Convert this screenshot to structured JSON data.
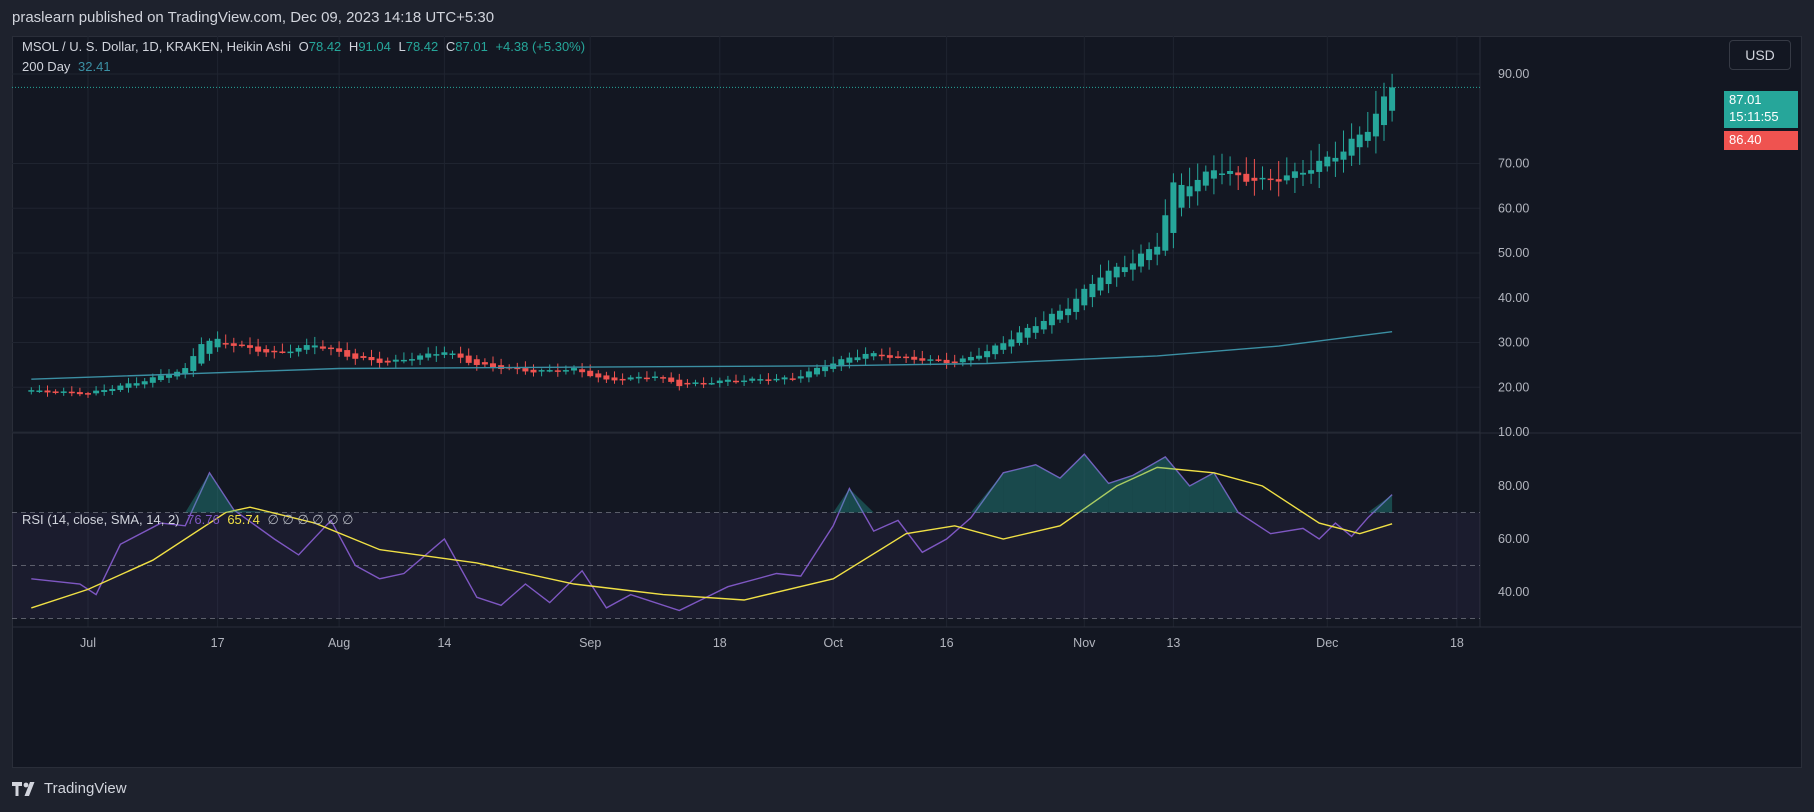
{
  "header": {
    "published_text": "praslearn published on TradingView.com, Dec 09, 2023 14:18 UTC+5:30"
  },
  "legend": {
    "symbol": "MSOL / U. S. Dollar, 1D, KRAKEN, Heikin Ashi",
    "o_label": "O",
    "o_value": "78.42",
    "h_label": "H",
    "h_value": "91.04",
    "l_label": "L",
    "l_value": "78.42",
    "c_label": "C",
    "c_value": "87.01",
    "change": "+4.38 (+5.30%)",
    "ma_label": "200 Day",
    "ma_value": "32.41"
  },
  "rsi_legend": {
    "label": "RSI (14, close, SMA, 14, 2)",
    "rsi_value": "76.76",
    "sma_value": "65.74",
    "placeholders": "∅ ∅ ∅ ∅ ∅ ∅"
  },
  "currency_button": "USD",
  "price_tags": {
    "last": "87.01",
    "countdown": "15:11:55",
    "other": "86.40"
  },
  "footer": {
    "brand": "TradingView"
  },
  "colors": {
    "up": "#26a69a",
    "down": "#ef5350",
    "ma": "#3b8fa3",
    "rsi": "#7e57c2",
    "rsi_sma": "#f0e045",
    "background": "#131722"
  },
  "chart_data": [
    {
      "type": "candlestick",
      "title": "MSOL / U. S. Dollar, 1D, KRAKEN, Heikin Ashi",
      "y_ticks": [
        "10.00",
        "20.00",
        "30.00",
        "40.00",
        "50.00",
        "60.00",
        "70.00",
        "90.00"
      ],
      "ylim": [
        10,
        92
      ],
      "x_ticks": [
        "Jul",
        "17",
        "Aug",
        "14",
        "Sep",
        "18",
        "Oct",
        "16",
        "Nov",
        "13",
        "Dec",
        "18"
      ],
      "x_tick_days": [
        0,
        16,
        31,
        44,
        62,
        78,
        92,
        106,
        123,
        134,
        153,
        169
      ],
      "date_start": "2023-07-01",
      "candles_note": "daily Heikin Ashi candles, approx. 2023-06-24 to 2023-12-09",
      "close_path": [
        [
          "2023-06-24",
          19.2
        ],
        [
          "2023-07-01",
          18.6
        ],
        [
          "2023-07-08",
          21.5
        ],
        [
          "2023-07-13",
          24.0
        ],
        [
          "2023-07-15",
          30.0
        ],
        [
          "2023-07-17",
          30.5
        ],
        [
          "2023-07-20",
          29.0
        ],
        [
          "2023-07-24",
          27.5
        ],
        [
          "2023-07-29",
          29.5
        ],
        [
          "2023-08-03",
          26.5
        ],
        [
          "2023-08-07",
          25.5
        ],
        [
          "2023-08-14",
          28.0
        ],
        [
          "2023-08-18",
          25.0
        ],
        [
          "2023-08-25",
          23.5
        ],
        [
          "2023-08-30",
          24.0
        ],
        [
          "2023-09-03",
          21.5
        ],
        [
          "2023-09-09",
          22.5
        ],
        [
          "2023-09-12",
          20.5
        ],
        [
          "2023-09-18",
          21.5
        ],
        [
          "2023-09-26",
          22.0
        ],
        [
          "2023-10-01",
          25.5
        ],
        [
          "2023-10-05",
          27.5
        ],
        [
          "2023-10-10",
          26.5
        ],
        [
          "2023-10-16",
          25.5
        ],
        [
          "2023-10-20",
          28.0
        ],
        [
          "2023-10-24",
          32.0
        ],
        [
          "2023-10-30",
          38.0
        ],
        [
          "2023-11-03",
          45.0
        ],
        [
          "2023-11-07",
          48.0
        ],
        [
          "2023-11-10",
          52.0
        ],
        [
          "2023-11-12",
          65.0
        ],
        [
          "2023-11-15",
          66.0
        ],
        [
          "2023-11-17",
          69.0
        ],
        [
          "2023-11-20",
          67.0
        ],
        [
          "2023-11-23",
          66.0
        ],
        [
          "2023-11-27",
          67.5
        ],
        [
          "2023-11-30",
          70.0
        ],
        [
          "2023-12-03",
          73.0
        ],
        [
          "2023-12-06",
          78.0
        ],
        [
          "2023-12-09",
          87.01
        ]
      ],
      "series": [
        {
          "name": "200 Day",
          "type": "line",
          "points": [
            [
              "2023-06-24",
              21.8
            ],
            [
              "2023-08-01",
              24.2
            ],
            [
              "2023-09-01",
              24.5
            ],
            [
              "2023-10-01",
              24.8
            ],
            [
              "2023-10-20",
              25.3
            ],
            [
              "2023-11-10",
              27.0
            ],
            [
              "2023-11-25",
              29.2
            ],
            [
              "2023-12-09",
              32.41
            ]
          ]
        }
      ]
    },
    {
      "type": "line",
      "title": "RSI (14, close, SMA, 14, 2)",
      "y_ticks": [
        "40.00",
        "60.00",
        "80.00"
      ],
      "ylim": [
        28,
        96
      ],
      "bands": [
        30,
        50,
        70
      ],
      "series": [
        {
          "name": "RSI",
          "points": [
            [
              "2023-06-24",
              45
            ],
            [
              "2023-06-30",
              43
            ],
            [
              "2023-07-02",
              39
            ],
            [
              "2023-07-05",
              58
            ],
            [
              "2023-07-10",
              66
            ],
            [
              "2023-07-13",
              65
            ],
            [
              "2023-07-16",
              85
            ],
            [
              "2023-07-19",
              71
            ],
            [
              "2023-07-24",
              60
            ],
            [
              "2023-07-27",
              54
            ],
            [
              "2023-07-31",
              67
            ],
            [
              "2023-08-03",
              50
            ],
            [
              "2023-08-06",
              45
            ],
            [
              "2023-08-09",
              47
            ],
            [
              "2023-08-14",
              60
            ],
            [
              "2023-08-18",
              38
            ],
            [
              "2023-08-21",
              35
            ],
            [
              "2023-08-24",
              43
            ],
            [
              "2023-08-27",
              36
            ],
            [
              "2023-08-31",
              48
            ],
            [
              "2023-09-03",
              34
            ],
            [
              "2023-09-06",
              39
            ],
            [
              "2023-09-12",
              33
            ],
            [
              "2023-09-18",
              42
            ],
            [
              "2023-09-24",
              47
            ],
            [
              "2023-09-27",
              46
            ],
            [
              "2023-10-01",
              65
            ],
            [
              "2023-10-03",
              79
            ],
            [
              "2023-10-06",
              63
            ],
            [
              "2023-10-09",
              67
            ],
            [
              "2023-10-12",
              55
            ],
            [
              "2023-10-15",
              60
            ],
            [
              "2023-10-18",
              68
            ],
            [
              "2023-10-22",
              85
            ],
            [
              "2023-10-26",
              88
            ],
            [
              "2023-10-29",
              83
            ],
            [
              "2023-11-01",
              92
            ],
            [
              "2023-11-04",
              81
            ],
            [
              "2023-11-07",
              84
            ],
            [
              "2023-11-11",
              91
            ],
            [
              "2023-11-14",
              80
            ],
            [
              "2023-11-17",
              85
            ],
            [
              "2023-11-20",
              70
            ],
            [
              "2023-11-24",
              62
            ],
            [
              "2023-11-28",
              64
            ],
            [
              "2023-11-30",
              60
            ],
            [
              "2023-12-02",
              66
            ],
            [
              "2023-12-04",
              61
            ],
            [
              "2023-12-06",
              68
            ],
            [
              "2023-12-09",
              76.76
            ]
          ]
        },
        {
          "name": "RSI SMA",
          "points": [
            [
              "2023-06-24",
              34
            ],
            [
              "2023-07-01",
              41
            ],
            [
              "2023-07-09",
              52
            ],
            [
              "2023-07-18",
              70
            ],
            [
              "2023-07-21",
              72
            ],
            [
              "2023-07-29",
              66
            ],
            [
              "2023-08-06",
              56
            ],
            [
              "2023-08-18",
              51
            ],
            [
              "2023-08-30",
              43
            ],
            [
              "2023-09-10",
              39
            ],
            [
              "2023-09-20",
              37
            ],
            [
              "2023-10-01",
              45
            ],
            [
              "2023-10-10",
              62
            ],
            [
              "2023-10-16",
              65
            ],
            [
              "2023-10-22",
              60
            ],
            [
              "2023-10-29",
              65
            ],
            [
              "2023-11-05",
              80
            ],
            [
              "2023-11-10",
              87
            ],
            [
              "2023-11-17",
              85
            ],
            [
              "2023-11-23",
              80
            ],
            [
              "2023-11-30",
              66
            ],
            [
              "2023-12-05",
              62
            ],
            [
              "2023-12-09",
              65.74
            ]
          ]
        }
      ]
    }
  ]
}
